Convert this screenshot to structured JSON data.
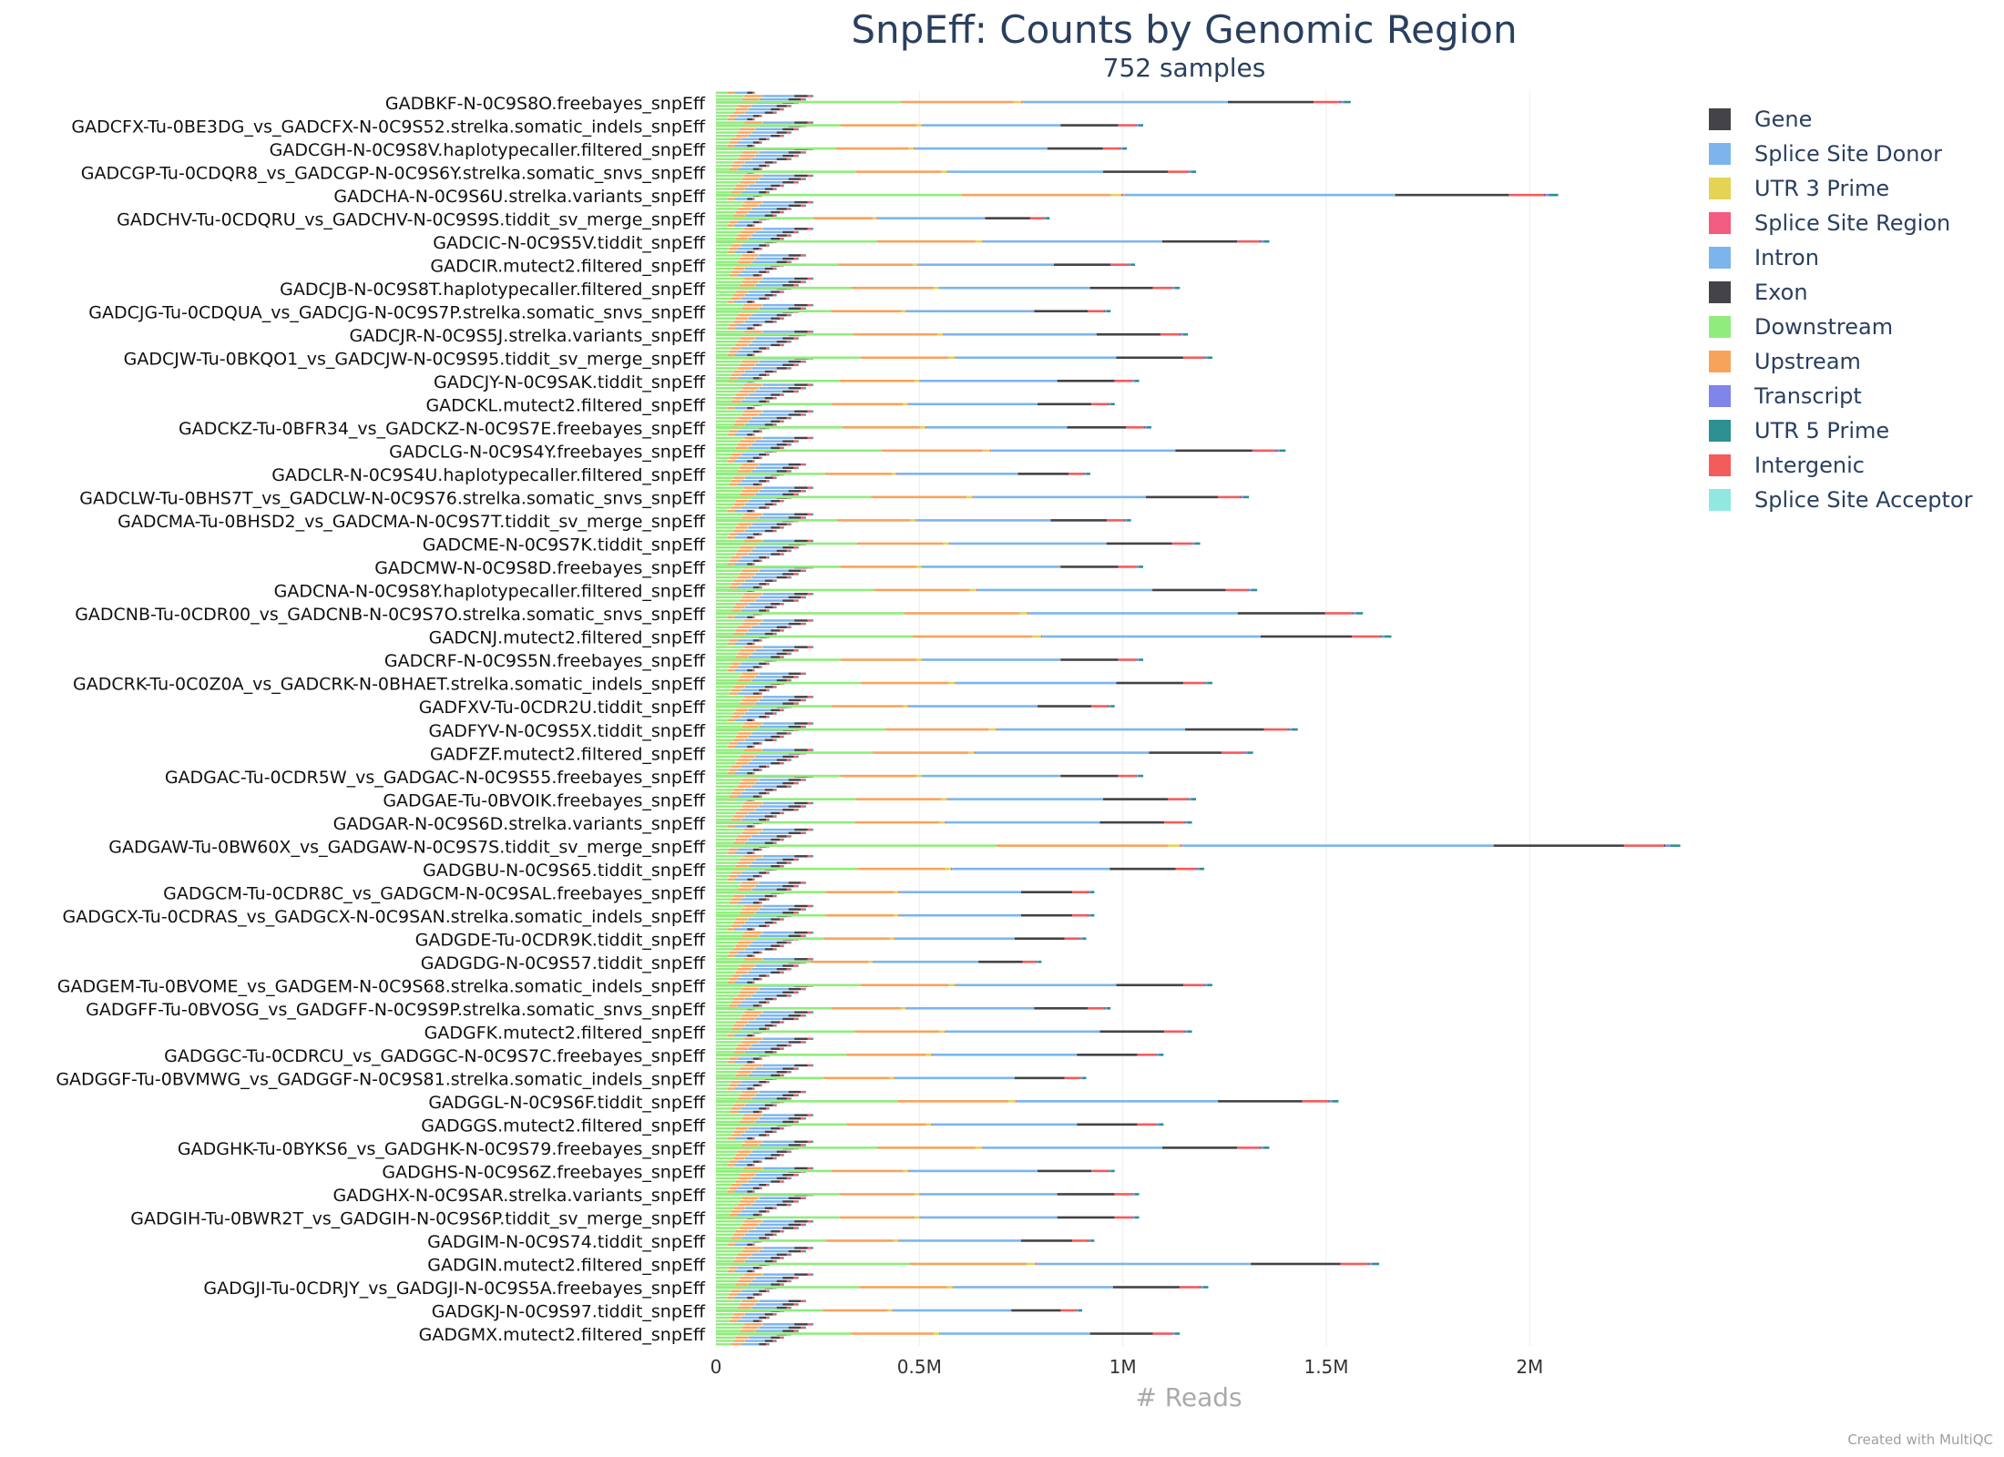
{
  "chart_data": {
    "type": "bar",
    "orientation": "horizontal",
    "stacked": true,
    "title": "SnpEff: Counts by Genomic Region",
    "subtitle": "752 samples",
    "xlabel": "# Reads",
    "ylabel": "",
    "xlim": [
      0,
      2400000
    ],
    "x_ticks": [
      {
        "value": 0,
        "label": "0"
      },
      {
        "value": 500000,
        "label": "0.5M"
      },
      {
        "value": 1000000,
        "label": "1M"
      },
      {
        "value": 1500000,
        "label": "1.5M"
      },
      {
        "value": 2000000,
        "label": "2M"
      }
    ],
    "series": [
      {
        "name": "Gene",
        "color": "#434348"
      },
      {
        "name": "Splice Site Donor",
        "color": "#7cb5ec"
      },
      {
        "name": "UTR 3 Prime",
        "color": "#e4d354"
      },
      {
        "name": "Splice Site Region",
        "color": "#f15c80"
      },
      {
        "name": "Intron",
        "color": "#7cb5ec"
      },
      {
        "name": "Exon",
        "color": "#434348"
      },
      {
        "name": "Downstream",
        "color": "#90ed7d"
      },
      {
        "name": "Upstream",
        "color": "#f7a35c"
      },
      {
        "name": "Transcript",
        "color": "#8085e9"
      },
      {
        "name": "UTR 5 Prime",
        "color": "#2b908f"
      },
      {
        "name": "Intergenic",
        "color": "#f45b5b"
      },
      {
        "name": "Splice Site Acceptor",
        "color": "#91e8e1"
      }
    ],
    "categories": [
      "GADBKF-N-0C9S8O.freebayes_snpEff",
      "GADCFX-Tu-0BE3DG_vs_GADCFX-N-0C9S52.strelka.somatic_indels_snpEff",
      "GADCGH-N-0C9S8V.haplotypecaller.filtered_snpEff",
      "GADCGP-Tu-0CDQR8_vs_GADCGP-N-0C9S6Y.strelka.somatic_snvs_snpEff",
      "GADCHA-N-0C9S6U.strelka.variants_snpEff",
      "GADCHV-Tu-0CDQRU_vs_GADCHV-N-0C9S9S.tiddit_sv_merge_snpEff",
      "GADCIC-N-0C9S5V.tiddit_snpEff",
      "GADCIR.mutect2.filtered_snpEff",
      "GADCJB-N-0C9S8T.haplotypecaller.filtered_snpEff",
      "GADCJG-Tu-0CDQUA_vs_GADCJG-N-0C9S7P.strelka.somatic_snvs_snpEff",
      "GADCJR-N-0C9S5J.strelka.variants_snpEff",
      "GADCJW-Tu-0BKQO1_vs_GADCJW-N-0C9S95.tiddit_sv_merge_snpEff",
      "GADCJY-N-0C9SAK.tiddit_snpEff",
      "GADCKL.mutect2.filtered_snpEff",
      "GADCKZ-Tu-0BFR34_vs_GADCKZ-N-0C9S7E.freebayes_snpEff",
      "GADCLG-N-0C9S4Y.freebayes_snpEff",
      "GADCLR-N-0C9S4U.haplotypecaller.filtered_snpEff",
      "GADCLW-Tu-0BHS7T_vs_GADCLW-N-0C9S76.strelka.somatic_snvs_snpEff",
      "GADCMA-Tu-0BHSD2_vs_GADCMA-N-0C9S7T.tiddit_sv_merge_snpEff",
      "GADCME-N-0C9S7K.tiddit_snpEff",
      "GADCMW-N-0C9S8D.freebayes_snpEff",
      "GADCNA-N-0C9S8Y.haplotypecaller.filtered_snpEff",
      "GADCNB-Tu-0CDR00_vs_GADCNB-N-0C9S7O.strelka.somatic_snvs_snpEff",
      "GADCNJ.mutect2.filtered_snpEff",
      "GADCRF-N-0C9S5N.freebayes_snpEff",
      "GADCRK-Tu-0C0Z0A_vs_GADCRK-N-0BHAET.strelka.somatic_indels_snpEff",
      "GADFXV-Tu-0CDR2U.tiddit_snpEff",
      "GADFYV-N-0C9S5X.tiddit_snpEff",
      "GADFZF.mutect2.filtered_snpEff",
      "GADGAC-Tu-0CDR5W_vs_GADGAC-N-0C9S55.freebayes_snpEff",
      "GADGAE-Tu-0BVOIK.freebayes_snpEff",
      "GADGAR-N-0C9S6D.strelka.variants_snpEff",
      "GADGAW-Tu-0BW60X_vs_GADGAW-N-0C9S7S.tiddit_sv_merge_snpEff",
      "GADGBU-N-0C9S65.tiddit_snpEff",
      "GADGCM-Tu-0CDR8C_vs_GADGCM-N-0C9SAL.freebayes_snpEff",
      "GADGCX-Tu-0CDRAS_vs_GADGCX-N-0C9SAN.strelka.somatic_indels_snpEff",
      "GADGDE-Tu-0CDR9K.tiddit_snpEff",
      "GADGDG-N-0C9S57.tiddit_snpEff",
      "GADGEM-Tu-0BVOME_vs_GADGEM-N-0C9S68.strelka.somatic_indels_snpEff",
      "GADGFF-Tu-0BVOSG_vs_GADGFF-N-0C9S9P.strelka.somatic_snvs_snpEff",
      "GADGFK.mutect2.filtered_snpEff",
      "GADGGC-Tu-0CDRCU_vs_GADGGC-N-0C9S7C.freebayes_snpEff",
      "GADGGF-Tu-0BVMWG_vs_GADGGF-N-0C9S81.strelka.somatic_indels_snpEff",
      "GADGGL-N-0C9S6F.tiddit_snpEff",
      "GADGGS.mutect2.filtered_snpEff",
      "GADGHK-Tu-0BYKS6_vs_GADGHK-N-0C9S79.freebayes_snpEff",
      "GADGHS-N-0C9S6Z.freebayes_snpEff",
      "GADGHX-N-0C9SAR.strelka.variants_snpEff",
      "GADGIH-Tu-0BWR2T_vs_GADGIH-N-0C9S6P.tiddit_sv_merge_snpEff",
      "GADGIM-N-0C9S74.tiddit_snpEff",
      "GADGIN.mutect2.filtered_snpEff",
      "GADGJI-Tu-0CDRJY_vs_GADGJI-N-0C9S5A.freebayes_snpEff",
      "GADGKJ-N-0C9S97.tiddit_snpEff",
      "GADGMX.mutect2.filtered_snpEff"
    ],
    "totals": [
      1560000,
      1050000,
      1010000,
      1180000,
      2070000,
      820000,
      1360000,
      1030000,
      1140000,
      970000,
      1160000,
      1220000,
      1040000,
      980000,
      1070000,
      1400000,
      920000,
      1310000,
      1020000,
      1190000,
      1050000,
      1330000,
      1590000,
      1660000,
      1050000,
      1220000,
      980000,
      1430000,
      1320000,
      1050000,
      1180000,
      1170000,
      2370000,
      1200000,
      930000,
      930000,
      910000,
      800000,
      1220000,
      970000,
      1170000,
      1100000,
      910000,
      1530000,
      1100000,
      1360000,
      980000,
      1040000,
      1040000,
      930000,
      1630000,
      1210000,
      900000,
      1140000
    ]
  },
  "credit": "Created with MultiQC"
}
